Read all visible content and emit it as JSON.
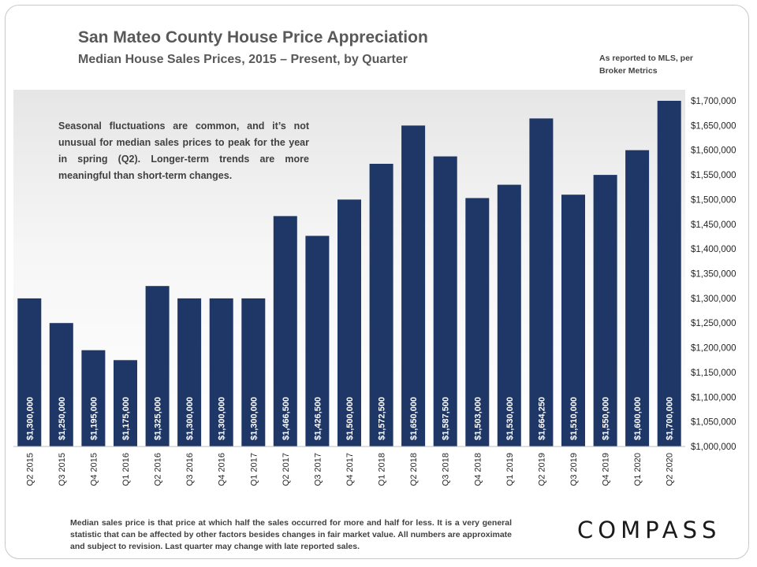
{
  "header": {
    "title": "San Mateo County House Price Appreciation",
    "subtitle": "Median House Sales Prices, 2015 – Present, by Quarter",
    "source_note": "As reported to MLS, per Broker Metrics"
  },
  "annotation": "Seasonal fluctuations are common, and it’s not unusual for median sales prices to peak for the year in spring (Q2). Longer-term trends are more meaningful than short-term changes.",
  "footnote": "Median sales price is that price at which half the sales occurred for more and half for less. It is a very general statistic that can be affected by other factors besides changes in fair market value. All numbers are approximate and subject to revision. Last quarter may change with late reported sales.",
  "brand": {
    "logo_text": "COMPASS"
  },
  "colors": {
    "bar": "#1f3766",
    "bar_label": "#ffffff",
    "axis_text": "#262626"
  },
  "chart_data": {
    "type": "bar",
    "title": "San Mateo County House Price Appreciation",
    "subtitle": "Median House Sales Prices, 2015 – Present, by Quarter",
    "categories": [
      "Q2 2015",
      "Q3 2015",
      "Q4 2015",
      "Q1 2016",
      "Q2 2016",
      "Q3 2016",
      "Q4 2016",
      "Q1 2017",
      "Q2 2017",
      "Q3 2017",
      "Q4 2017",
      "Q1 2018",
      "Q2 2018",
      "Q3 2018",
      "Q4 2018",
      "Q1 2019",
      "Q2 2019",
      "Q3 2019",
      "Q4 2019",
      "Q1 2020",
      "Q2 2020"
    ],
    "values": [
      1300000,
      1250000,
      1195000,
      1175000,
      1325000,
      1300000,
      1300000,
      1300000,
      1466500,
      1426500,
      1500000,
      1572500,
      1650000,
      1587500,
      1503000,
      1530000,
      1664250,
      1510000,
      1550000,
      1600000,
      1700000
    ],
    "data_labels": [
      "$1,300,000",
      "$1,250,000",
      "$1,195,000",
      "$1,175,000",
      "$1,325,000",
      "$1,300,000",
      "$1,300,000",
      "$1,300,000",
      "$1,466,500",
      "$1,426,500",
      "$1,500,000",
      "$1,572,500",
      "$1,650,000",
      "$1,587,500",
      "$1,503,000",
      "$1,530,000",
      "$1,664,250",
      "$1,510,000",
      "$1,550,000",
      "$1,600,000",
      "$1,700,000"
    ],
    "ylim": [
      1000000,
      1700000
    ],
    "y_ticks": [
      1000000,
      1050000,
      1100000,
      1150000,
      1200000,
      1250000,
      1300000,
      1350000,
      1400000,
      1450000,
      1500000,
      1550000,
      1600000,
      1650000,
      1700000
    ],
    "y_tick_labels": [
      "$1,000,000",
      "$1,050,000",
      "$1,100,000",
      "$1,150,000",
      "$1,200,000",
      "$1,250,000",
      "$1,300,000",
      "$1,350,000",
      "$1,400,000",
      "$1,450,000",
      "$1,500,000",
      "$1,550,000",
      "$1,600,000",
      "$1,650,000",
      "$1,700,000"
    ],
    "y_axis_side": "right",
    "grid": false,
    "legend": "none"
  }
}
